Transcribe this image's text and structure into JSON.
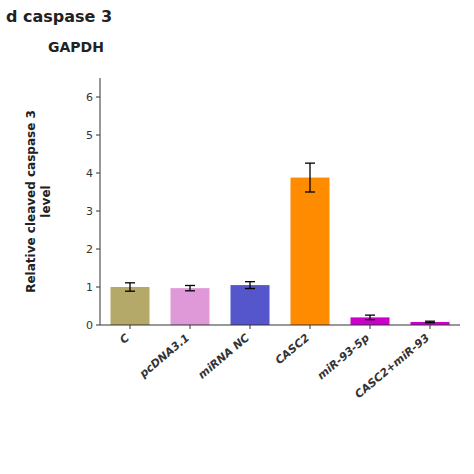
{
  "chart_data": {
    "type": "bar",
    "title": "d caspase 3",
    "subtitle": "GAPDH",
    "categories": [
      "C",
      "pcDNA3.1",
      "miRNA NC",
      "CASC2",
      "miR-93-5p",
      "CASC2+miR-93"
    ],
    "values": [
      1.0,
      0.97,
      1.05,
      3.88,
      0.2,
      0.08
    ],
    "errors": [
      0.11,
      0.07,
      0.09,
      0.38,
      0.06,
      0.02
    ],
    "colors": [
      "#b5a96a",
      "#e099d8",
      "#5555cc",
      "#ff8c00",
      "#cc00cc",
      "#cc00cc"
    ],
    "ylabel": "Relative cleaved caspase 3\nlevel",
    "ylim": [
      0,
      6.5
    ],
    "yticks": [
      0,
      1,
      2,
      3,
      4,
      5,
      6
    ],
    "grid": false
  }
}
